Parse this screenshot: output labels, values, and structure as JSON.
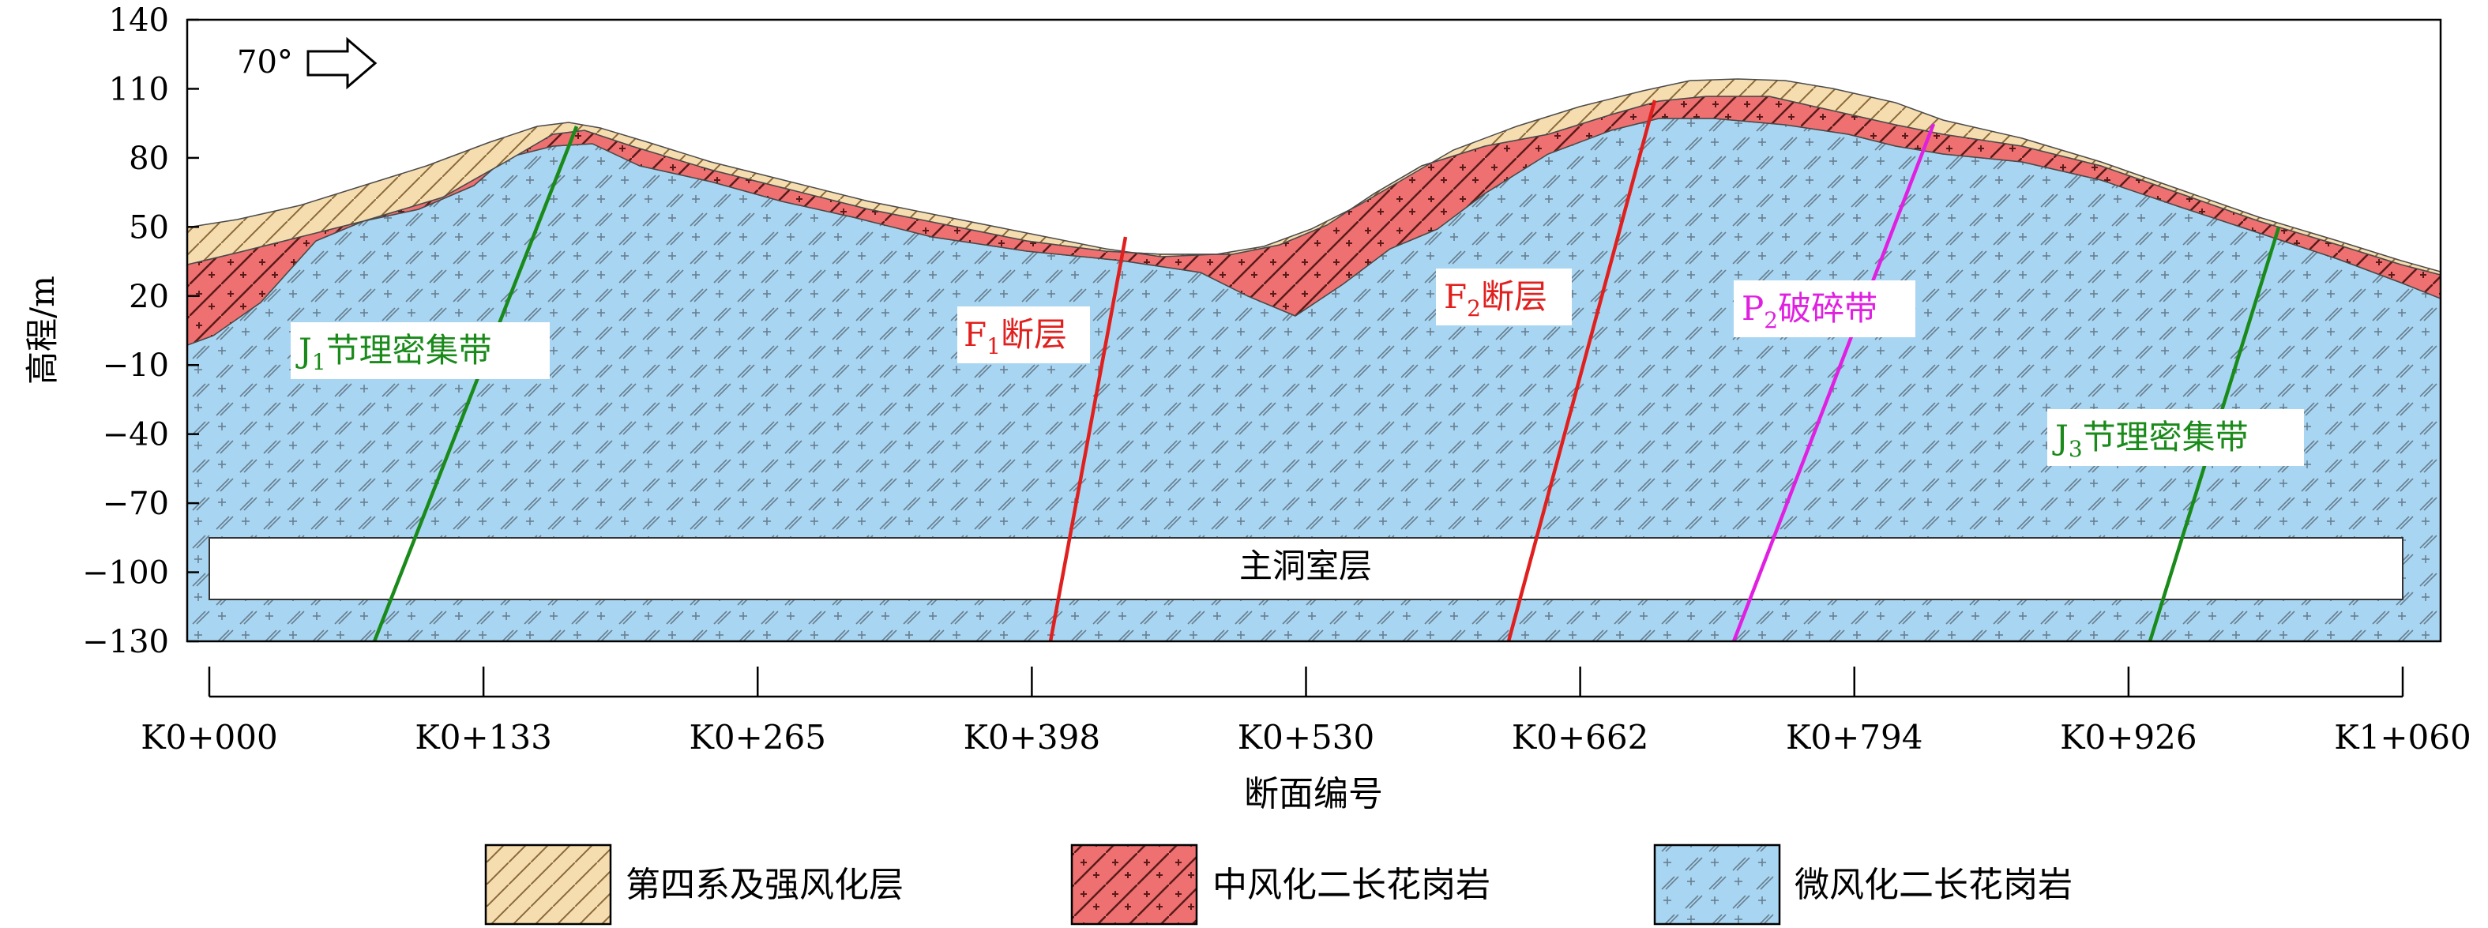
{
  "axes": {
    "ylabel": "高程/m",
    "yticks": [
      140,
      110,
      80,
      50,
      20,
      -10,
      -40,
      -70,
      -100,
      -130
    ],
    "xlabel": "断面编号",
    "xticks": [
      "K0+000",
      "K0+133",
      "K0+265",
      "K0+398",
      "K0+530",
      "K0+662",
      "K0+794",
      "K0+926",
      "K1+060"
    ]
  },
  "direction": {
    "label": "70°"
  },
  "cavern": {
    "label": "主洞室层"
  },
  "features": {
    "j1": {
      "label": "J",
      "sub": "1",
      "rest": "节理密集带",
      "color": "#1a8a1a"
    },
    "f1": {
      "label": "F",
      "sub": "1",
      "rest": "断层",
      "color": "#e0201e"
    },
    "f2": {
      "label": "F",
      "sub": "2",
      "rest": "断层",
      "color": "#e0201e"
    },
    "p2": {
      "label": "P",
      "sub": "2",
      "rest": "破碎带",
      "color": "#e020e0"
    },
    "j3": {
      "label": "J",
      "sub": "3",
      "rest": "节理密集带",
      "color": "#1a8a1a"
    }
  },
  "legend": {
    "quaternary": "第四系及强风化层",
    "moderate": "中风化二长花岗岩",
    "slight": "微风化二长花岗岩"
  },
  "colors": {
    "quaternary": "#f5ddb0",
    "moderate": "#ee7070",
    "slight": "#a8d6f2"
  }
}
